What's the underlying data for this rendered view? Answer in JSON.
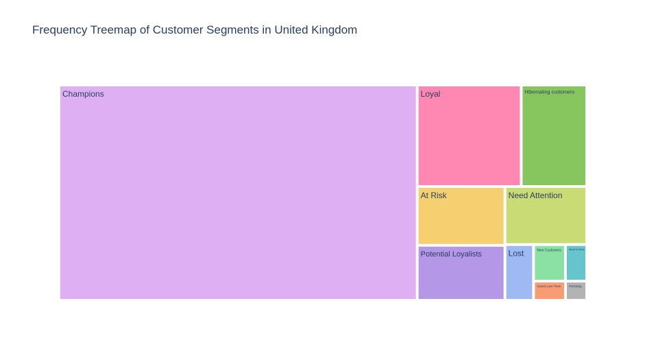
{
  "chart_data": {
    "type": "treemap",
    "title": "Frequency Treemap of Customer Segments in United Kingdom",
    "segments": [
      {
        "name": "Champions",
        "value": 18850,
        "color": "#DEB0F3"
      },
      {
        "name": "Loyal",
        "value": 2580,
        "color": "#FE88B1"
      },
      {
        "name": "Hibernating customers",
        "value": 1625,
        "color": "#87C55F"
      },
      {
        "name": "At Risk",
        "value": 1260,
        "color": "#F6CF71"
      },
      {
        "name": "Need Attention",
        "value": 1160,
        "color": "#C9DB74"
      },
      {
        "name": "Potential Loyalists",
        "value": 1180,
        "color": "#B497E7"
      },
      {
        "name": "Lost",
        "value": 390,
        "color": "#9EB9F3"
      },
      {
        "name": "New Customers",
        "value": 285,
        "color": "#8BE0A4"
      },
      {
        "name": "About to Sleep",
        "value": 190,
        "color": "#66C5CC"
      },
      {
        "name": "Cannot Lose Them",
        "value": 150,
        "color": "#F89C74"
      },
      {
        "name": "Promising",
        "value": 100,
        "color": "#B3B3B3"
      }
    ]
  }
}
